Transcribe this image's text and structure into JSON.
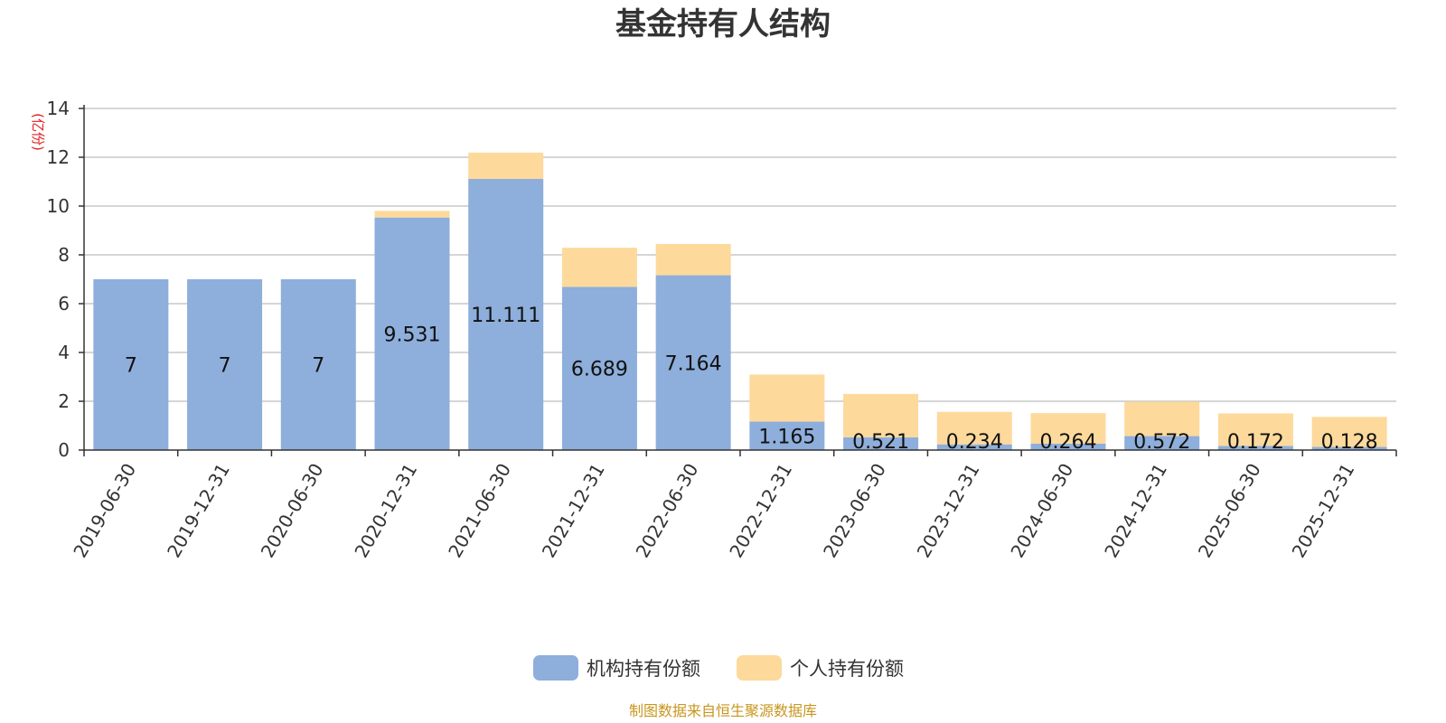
{
  "chart_data": {
    "type": "bar",
    "stacked": true,
    "title": "基金持有人结构",
    "y_unit": "(亿份)",
    "ylim": [
      0,
      14
    ],
    "yticks": [
      "0",
      "2",
      "4",
      "6",
      "8",
      "10",
      "12",
      "14"
    ],
    "grid": true,
    "legend_position": "bottom-center",
    "categories": [
      "2019-06-30",
      "2019-12-31",
      "2020-06-30",
      "2020-12-31",
      "2021-06-30",
      "2021-12-31",
      "2022-06-30",
      "2022-12-31",
      "2023-06-30",
      "2023-12-31",
      "2024-06-30",
      "2024-12-31",
      "2025-06-30",
      "2025-12-31"
    ],
    "series": [
      {
        "name": "机构持有份额",
        "color": "#8eaedb",
        "values": [
          7,
          7,
          7,
          9.531,
          11.111,
          6.689,
          7.164,
          1.165,
          0.521,
          0.234,
          0.264,
          0.572,
          0.172,
          0.128
        ],
        "labels": [
          "7",
          "7",
          "7",
          "9.531",
          "11.111",
          "6.689",
          "7.164",
          "1.165",
          "0.521",
          "0.234",
          "0.264",
          "0.572",
          "0.172",
          "0.128"
        ]
      },
      {
        "name": "个人持有份额",
        "color": "#fdd99b",
        "values": [
          0,
          0,
          0,
          0.27,
          1.08,
          1.6,
          1.28,
          1.93,
          1.78,
          1.33,
          1.25,
          1.41,
          1.33,
          1.23
        ]
      }
    ],
    "source_note": "制图数据来自恒生聚源数据库"
  }
}
